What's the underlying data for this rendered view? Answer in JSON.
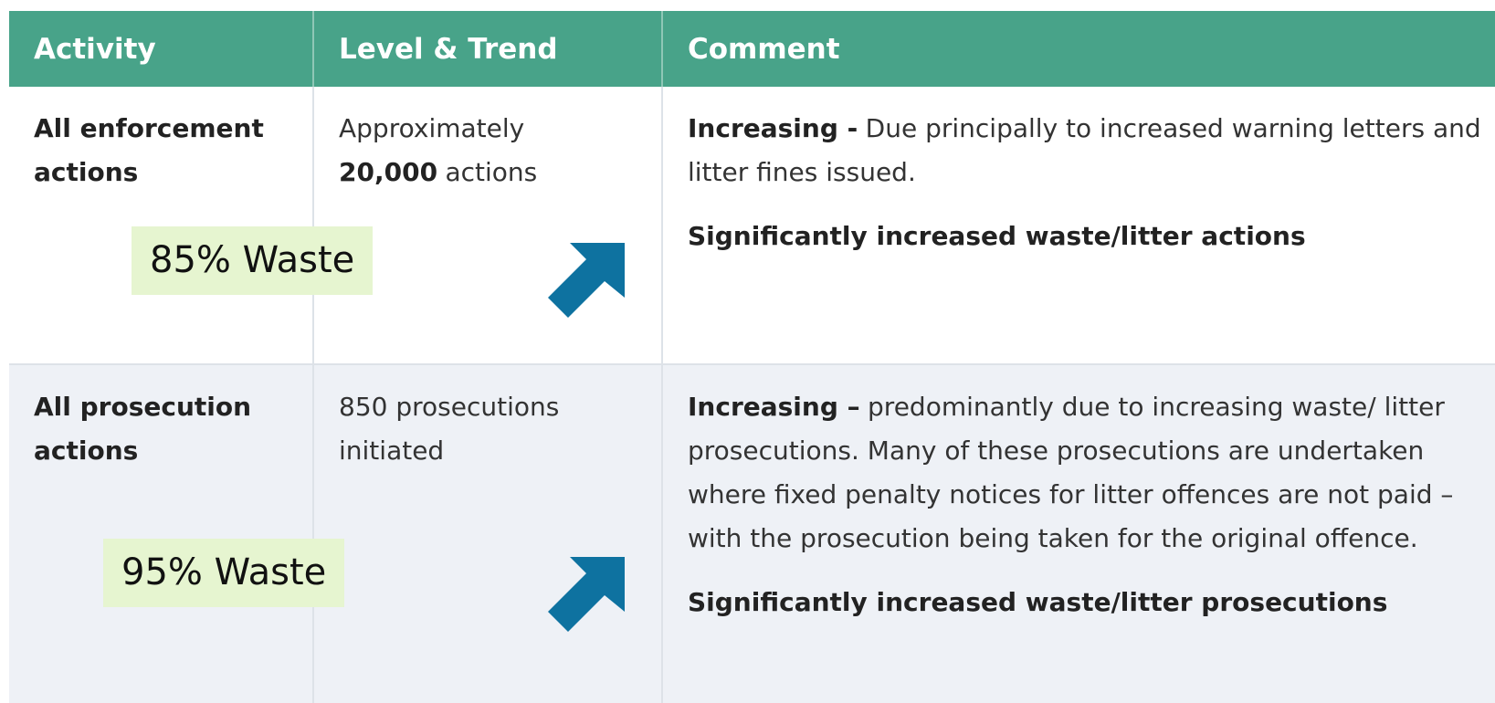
{
  "table": {
    "header": [
      "Activity",
      "Level & Trend",
      "Comment"
    ],
    "rows": [
      {
        "activity": "All enforcement actions",
        "level": {
          "text": "Approximately",
          "bold": "20,000",
          "after": "actions"
        },
        "comment_bold": "Increasing -",
        "comment": "Due principally to increased warning letters and litter fines issued.",
        "summary": "Significantly increased waste/litter actions",
        "annotation": "85% Waste"
      },
      {
        "activity": "All prosecution actions",
        "level": {
          "text": "850 prosecutions initiated"
        },
        "comment_bold": "Increasing –",
        "comment": "predominantly due to increasing waste/ litter prosecutions. Many of these prosecutions are undertaken where fixed penalty notices for litter offences are not paid – with the prosecution being taken for the original offence.",
        "summary": "Significantly increased waste/litter prosecutions",
        "annotation": "95% Waste"
      }
    ]
  }
}
